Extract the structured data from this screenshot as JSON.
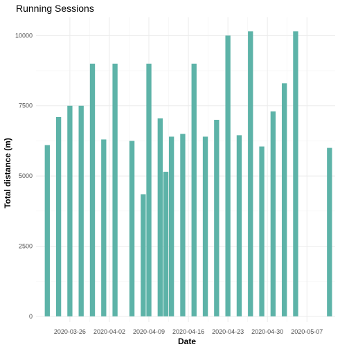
{
  "chart_data": {
    "type": "bar",
    "title": "Running Sessions",
    "xlabel": "Date",
    "ylabel": "Total distance (m)",
    "ylim": [
      -200,
      10650
    ],
    "xlim": [
      "2020-03-20",
      "2020-05-12"
    ],
    "grid": true,
    "color": "#5DB3A8",
    "y_ticks": [
      0,
      2500,
      5000,
      7500,
      10000
    ],
    "x_ticks": [
      "2020-03-26",
      "2020-04-02",
      "2020-04-09",
      "2020-04-16",
      "2020-04-23",
      "2020-04-30",
      "2020-05-07"
    ],
    "x": [
      "2020-03-22",
      "2020-03-24",
      "2020-03-26",
      "2020-03-28",
      "2020-03-30",
      "2020-04-01",
      "2020-04-03",
      "2020-04-06",
      "2020-04-08",
      "2020-04-09",
      "2020-04-11",
      "2020-04-12",
      "2020-04-13",
      "2020-04-15",
      "2020-04-17",
      "2020-04-19",
      "2020-04-21",
      "2020-04-23",
      "2020-04-25",
      "2020-04-27",
      "2020-04-29",
      "2020-05-01",
      "2020-05-03",
      "2020-05-05",
      "2020-05-11"
    ],
    "values": [
      6100,
      7100,
      7500,
      7500,
      9000,
      6300,
      9000,
      6250,
      4350,
      9000,
      7050,
      5150,
      6400,
      6500,
      9000,
      6400,
      7000,
      10000,
      6450,
      10150,
      6050,
      7300,
      8300,
      10150,
      6000
    ]
  }
}
